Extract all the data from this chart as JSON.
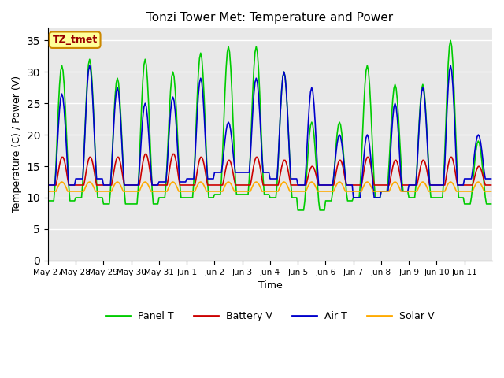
{
  "title": "Tonzi Tower Met: Temperature and Power",
  "xlabel": "Time",
  "ylabel": "Temperature (C) / Power (V)",
  "ylim": [
    0,
    37
  ],
  "yticks": [
    0,
    5,
    10,
    15,
    20,
    25,
    30,
    35
  ],
  "plot_bg_color": "#e8e8e8",
  "grid_color": "white",
  "colors": {
    "panel_t": "#00cc00",
    "battery_v": "#cc0000",
    "air_t": "#0000cc",
    "solar_v": "#ffaa00"
  },
  "label_box": "TZ_tmet",
  "xtick_labels": [
    "May 27",
    "May 28",
    "May 29",
    "May 30",
    "May 31",
    "Jun 1",
    "Jun 2",
    "Jun 3",
    "Jun 4",
    "Jun 5",
    "Jun 6",
    "Jun 7",
    "Jun 8",
    "Jun 9",
    "Jun 10",
    "Jun 11"
  ],
  "legend_labels": [
    "Panel T",
    "Battery V",
    "Air T",
    "Solar V"
  ],
  "panel_t_peaks": [
    31,
    32,
    29,
    32,
    30,
    33,
    34,
    34,
    30,
    22,
    22,
    31,
    28,
    28,
    35,
    19
  ],
  "panel_t_troughs": [
    9.5,
    10,
    9,
    9,
    10,
    10,
    10.5,
    10.5,
    10,
    8,
    9.5,
    10,
    11,
    10,
    10,
    9
  ],
  "battery_v_peaks": [
    16.5,
    16.5,
    16.5,
    17,
    17,
    16.5,
    16,
    16.5,
    16,
    15,
    16,
    16.5,
    16,
    16,
    16.5,
    15
  ],
  "air_t_peaks": [
    26.5,
    31,
    27.5,
    25,
    26,
    29,
    22,
    29,
    30,
    27.5,
    20,
    20,
    25,
    27.5,
    31,
    20
  ],
  "air_t_troughs": [
    12,
    13,
    12,
    12,
    12.5,
    13,
    14,
    14,
    13,
    12,
    12,
    10,
    11,
    12,
    12,
    13
  ]
}
